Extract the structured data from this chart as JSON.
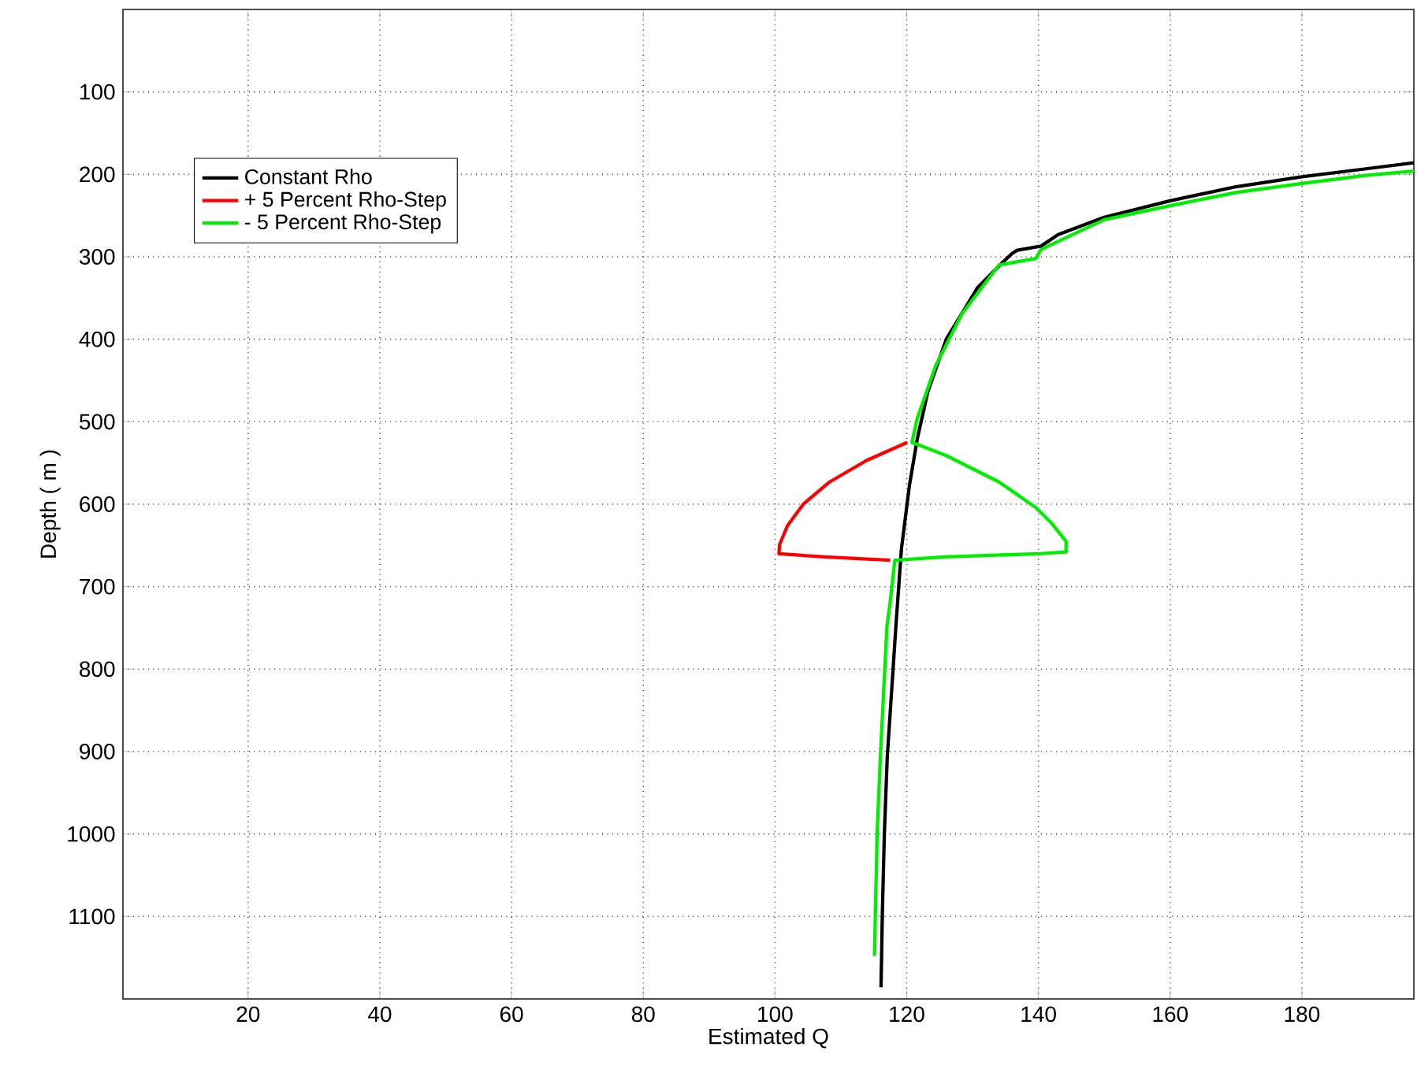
{
  "chart_data": {
    "type": "line",
    "xlabel": "Estimated Q",
    "ylabel": "Depth ( m )",
    "xlim": [
      1,
      197
    ],
    "ylim": [
      1200,
      0
    ],
    "xticks": [
      20,
      40,
      60,
      80,
      100,
      120,
      140,
      160,
      180
    ],
    "yticks": [
      100,
      200,
      300,
      400,
      500,
      600,
      700,
      800,
      900,
      1000,
      1100
    ],
    "grid": true,
    "legend": "top left",
    "series": [
      {
        "name": "Constant Rho",
        "color": "#000000",
        "x": [
          197,
          190,
          180,
          170,
          160,
          150,
          143,
          140.4,
          136.8,
          136,
          134.4,
          130.8,
          126,
          123.2,
          121.6,
          120.4,
          119.2,
          118.4,
          117.05,
          116.6,
          116.3,
          116.1
        ],
        "values": [
          186,
          193,
          203,
          215,
          232,
          252,
          273,
          287,
          292,
          296,
          308,
          337,
          400,
          464,
          521,
          578,
          654,
          743,
          906,
          1001,
          1097,
          1186
        ]
      },
      {
        "name": "+ 5 Percent Rho-Step",
        "color": "#ff0000",
        "x": [
          120.1,
          113.9,
          108.3,
          104.3,
          101.9,
          100.7,
          100.6,
          107.5,
          117.5
        ],
        "values": [
          525,
          547,
          573,
          600,
          626,
          649,
          660,
          664,
          668
        ]
      },
      {
        "name": "- 5 Percent Rho-Step",
        "color": "#00ee00",
        "x": [
          197,
          190,
          180,
          170,
          160,
          150,
          140.4,
          139.6,
          134,
          128.4,
          124.4,
          121.6,
          120.8,
          126,
          134,
          139.6,
          142,
          144.2,
          144.2,
          140.2,
          125.8,
          118.2,
          117.5,
          117,
          116,
          115.5,
          115.1
        ],
        "values": [
          196,
          201,
          211,
          222,
          238,
          255,
          291,
          302,
          310,
          369,
          432,
          496,
          525,
          541,
          573,
          604,
          623,
          645,
          658,
          660,
          664,
          668,
          718,
          748,
          906,
          1001,
          1148
        ]
      }
    ]
  }
}
